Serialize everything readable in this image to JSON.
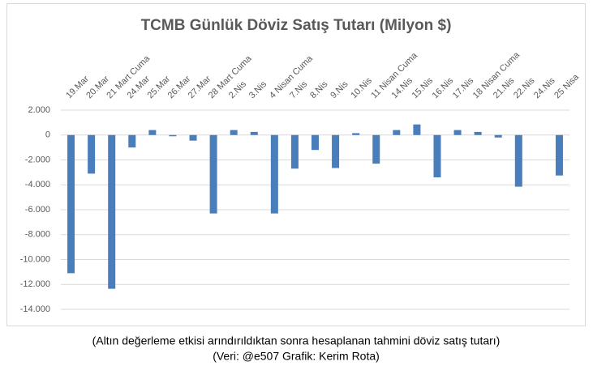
{
  "chart_data": {
    "type": "bar",
    "title": "TCMB Günlük Döviz Satış Tutarı (Milyon $)",
    "footnotes": [
      "(Altın değerleme etkisi arındırıldıktan sonra hesaplanan tahmini döviz satış tutarı)",
      "(Veri: @e507 Grafik: Kerim Rota)"
    ],
    "categories": [
      "19.Mar",
      "20.Mar",
      "21 Mart Cuma",
      "24.Mar",
      "25.Mar",
      "26.Mar",
      "27.Mar",
      "28 Mart Cuma",
      "2.Nis",
      "3.Nis",
      "4 Nisan Cuma",
      "7.Nis",
      "8.Nis",
      "9.Nis",
      "10.Nis",
      "11 Nisan Cuma",
      "14.Nis",
      "15.Nis",
      "16.Nis",
      "17.Nis",
      "18 Nisan Cuma",
      "21.Nis",
      "22.Nis",
      "24.Nis",
      "25 Nisa"
    ],
    "values": [
      -11100,
      -3100,
      -12350,
      -1000,
      400,
      -100,
      -450,
      -6300,
      400,
      250,
      -6300,
      -2700,
      -1200,
      -2650,
      150,
      -2300,
      400,
      850,
      -3400,
      400,
      250,
      -200,
      -4150,
      0,
      -3250
    ],
    "color": "#4a7ebb",
    "ylim": [
      -14000,
      2000
    ],
    "yticks": [
      {
        "value": 2000,
        "label": "2.000"
      },
      0,
      {
        "value": -2000,
        "label": "-2.000"
      },
      {
        "value": -4000,
        "label": "-4.000"
      },
      {
        "value": -6000,
        "label": "-6.000"
      },
      {
        "value": -8000,
        "label": "-8.000"
      },
      {
        "value": -10000,
        "label": "-10.000"
      },
      {
        "value": -12000,
        "label": "-12.000"
      },
      {
        "value": -14000,
        "label": "-14.000"
      }
    ],
    "grid": true
  }
}
